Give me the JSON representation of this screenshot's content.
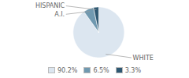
{
  "chart_data": {
    "type": "pie",
    "categories": [
      "WHITE",
      "A.I.",
      "HISPANIC"
    ],
    "values": [
      90.2,
      6.5,
      3.3
    ],
    "colors": [
      "#dce6f0",
      "#7099b0",
      "#2e5872"
    ],
    "value_labels": [
      "90.2%",
      "6.5%",
      "3.3%"
    ],
    "legend": "bottom"
  }
}
